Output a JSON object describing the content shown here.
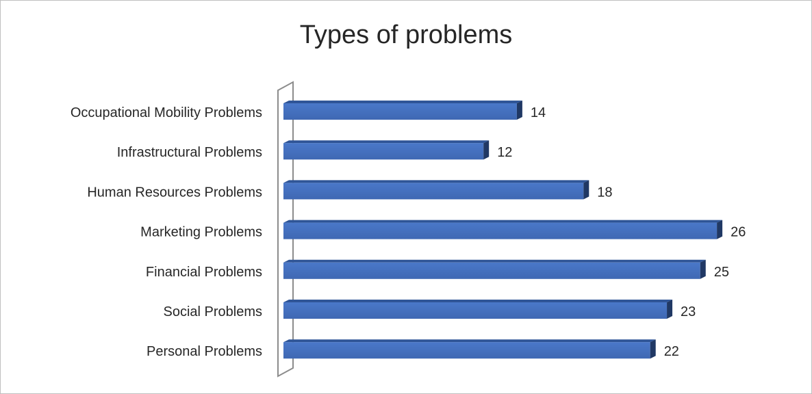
{
  "chart_data": {
    "type": "bar",
    "orientation": "horizontal",
    "title": "Types of problems",
    "categories": [
      "Occupational Mobility Problems",
      "Infrastructural Problems",
      "Human Resources Problems",
      "Marketing Problems",
      "Financial Problems",
      "Social Problems",
      "Personal Problems"
    ],
    "values": [
      14,
      12,
      18,
      26,
      25,
      23,
      22
    ],
    "data_labels": [
      "14",
      "12",
      "18",
      "26",
      "25",
      "23",
      "22"
    ],
    "xlim": [
      0,
      26
    ],
    "grid": false,
    "legend": "none",
    "style": "3d",
    "bar_color": "#4472C4"
  }
}
